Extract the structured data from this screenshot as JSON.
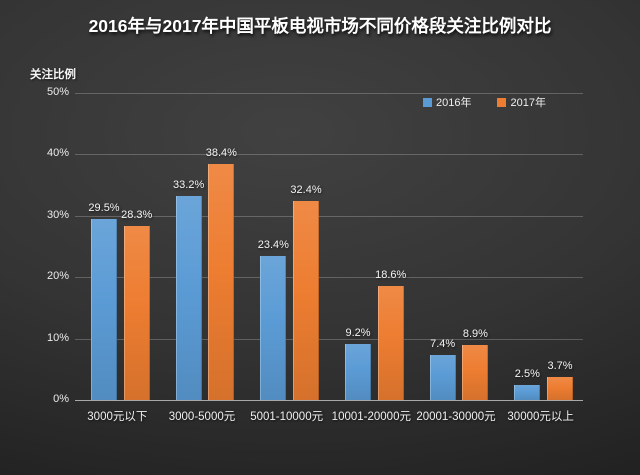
{
  "title": "2016年与2017年中国平板电视市场不同价格段关注比例对比",
  "colors": {
    "background_center": "#414141",
    "background_edge": "#1b1b1b",
    "series_2016": "#5B9BD5",
    "series_2017": "#ED7D31",
    "gridline": "rgba(255,255,255,0.22)",
    "axis_line": "#a8a8a8",
    "text": "#f2f2f2"
  },
  "chart_data": {
    "type": "bar",
    "title": "2016年与2017年中国平板电视市场不同价格段关注比例对比",
    "ylabel": "关注比例",
    "xlabel": "",
    "categories": [
      "3000元以下",
      "3000-5000元",
      "5001-10000元",
      "10001-20000元",
      "20001-30000元",
      "30000元以上"
    ],
    "series": [
      {
        "name": "2016年",
        "color": "#5B9BD5",
        "values": [
          29.5,
          33.2,
          23.4,
          9.2,
          7.4,
          2.5
        ]
      },
      {
        "name": "2017年",
        "color": "#ED7D31",
        "values": [
          28.3,
          38.4,
          32.4,
          18.6,
          8.9,
          3.7
        ]
      }
    ],
    "ylim": [
      0,
      50
    ],
    "yticks": [
      "0%",
      "10%",
      "20%",
      "30%",
      "40%",
      "50%"
    ],
    "grid": true,
    "legend_position": "top-right",
    "data_labels": true
  }
}
